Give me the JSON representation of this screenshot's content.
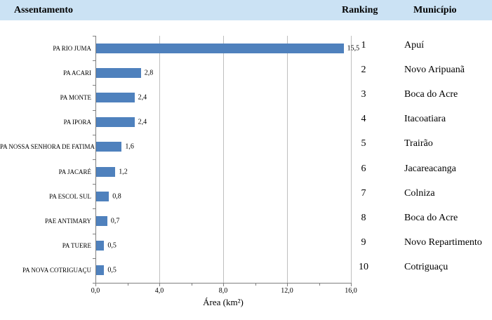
{
  "header": {
    "assentamento": "Assentamento",
    "ranking": "Ranking",
    "municipio": "Município"
  },
  "colors": {
    "bar": "#4F81BD",
    "header_bg": "#CBE2F4",
    "gridline": "#BFBFBF",
    "axis": "#7F7F7F"
  },
  "chart_data": {
    "type": "bar",
    "orientation": "horizontal",
    "title": "",
    "categories": [
      "PA RIO JUMA",
      "PA ACARI",
      "PA MONTE",
      "PA IPORA",
      "PA NOSSA SENHORA DE FATIMA",
      "PA JACARÉ",
      "PA ESCOL SUL",
      "PAE ANTIMARY",
      "PA TUERE",
      "PA NOVA COTRIGUAÇU"
    ],
    "values": [
      15.5,
      2.8,
      2.4,
      2.4,
      1.6,
      1.2,
      0.8,
      0.7,
      0.5,
      0.5
    ],
    "value_labels": [
      "15,5",
      "2,8",
      "2,4",
      "2,4",
      "1,6",
      "1,2",
      "0,8",
      "0,7",
      "0,5",
      "0,5"
    ],
    "xlabel": "Área (km²)",
    "ylabel": "",
    "xlim": [
      0,
      16
    ],
    "x_ticks": [
      {
        "value": 0,
        "label": "0,0"
      },
      {
        "value": 4,
        "label": "4,0"
      },
      {
        "value": 8,
        "label": "8,0"
      },
      {
        "value": 12,
        "label": "12,0"
      },
      {
        "value": 16,
        "label": "16,0"
      }
    ],
    "x_minor_ticks": [
      2,
      6,
      10,
      14
    ],
    "grid": "vertical-major-on",
    "legend": "none"
  },
  "ranking_table": {
    "rows": [
      {
        "rank": "1",
        "municipio": "Apuí"
      },
      {
        "rank": "2",
        "municipio": "Novo Aripuanã"
      },
      {
        "rank": "3",
        "municipio": "Boca do Acre"
      },
      {
        "rank": "4",
        "municipio": "Itacoatiara"
      },
      {
        "rank": "5",
        "municipio": "Trairão"
      },
      {
        "rank": "6",
        "municipio": "Jacareacanga"
      },
      {
        "rank": "7",
        "municipio": "Colniza"
      },
      {
        "rank": "8",
        "municipio": "Boca do Acre"
      },
      {
        "rank": "9",
        "municipio": "Novo Repartimento"
      },
      {
        "rank": "10",
        "municipio": "Cotriguaçu"
      }
    ]
  }
}
